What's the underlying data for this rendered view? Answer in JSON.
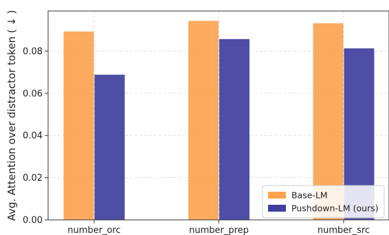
{
  "chart_data": {
    "type": "bar",
    "title": "",
    "xlabel": "",
    "ylabel": "Avg. Attention over distractor token ( ↓ )",
    "categories": [
      "number_orc",
      "number_prep",
      "number_src"
    ],
    "series": [
      {
        "name": "Base-LM",
        "color": "#fba350",
        "values": [
          0.0893,
          0.0943,
          0.0932
        ]
      },
      {
        "name": "Pushdown-LM (ours)",
        "color": "#3f3f9f",
        "values": [
          0.0688,
          0.0857,
          0.0813
        ]
      }
    ],
    "ylim": [
      0,
      0.099
    ],
    "yticks": [
      "0.00",
      "0.02",
      "0.04",
      "0.06",
      "0.08"
    ],
    "grid": true,
    "legend_position": "bottom-right"
  }
}
